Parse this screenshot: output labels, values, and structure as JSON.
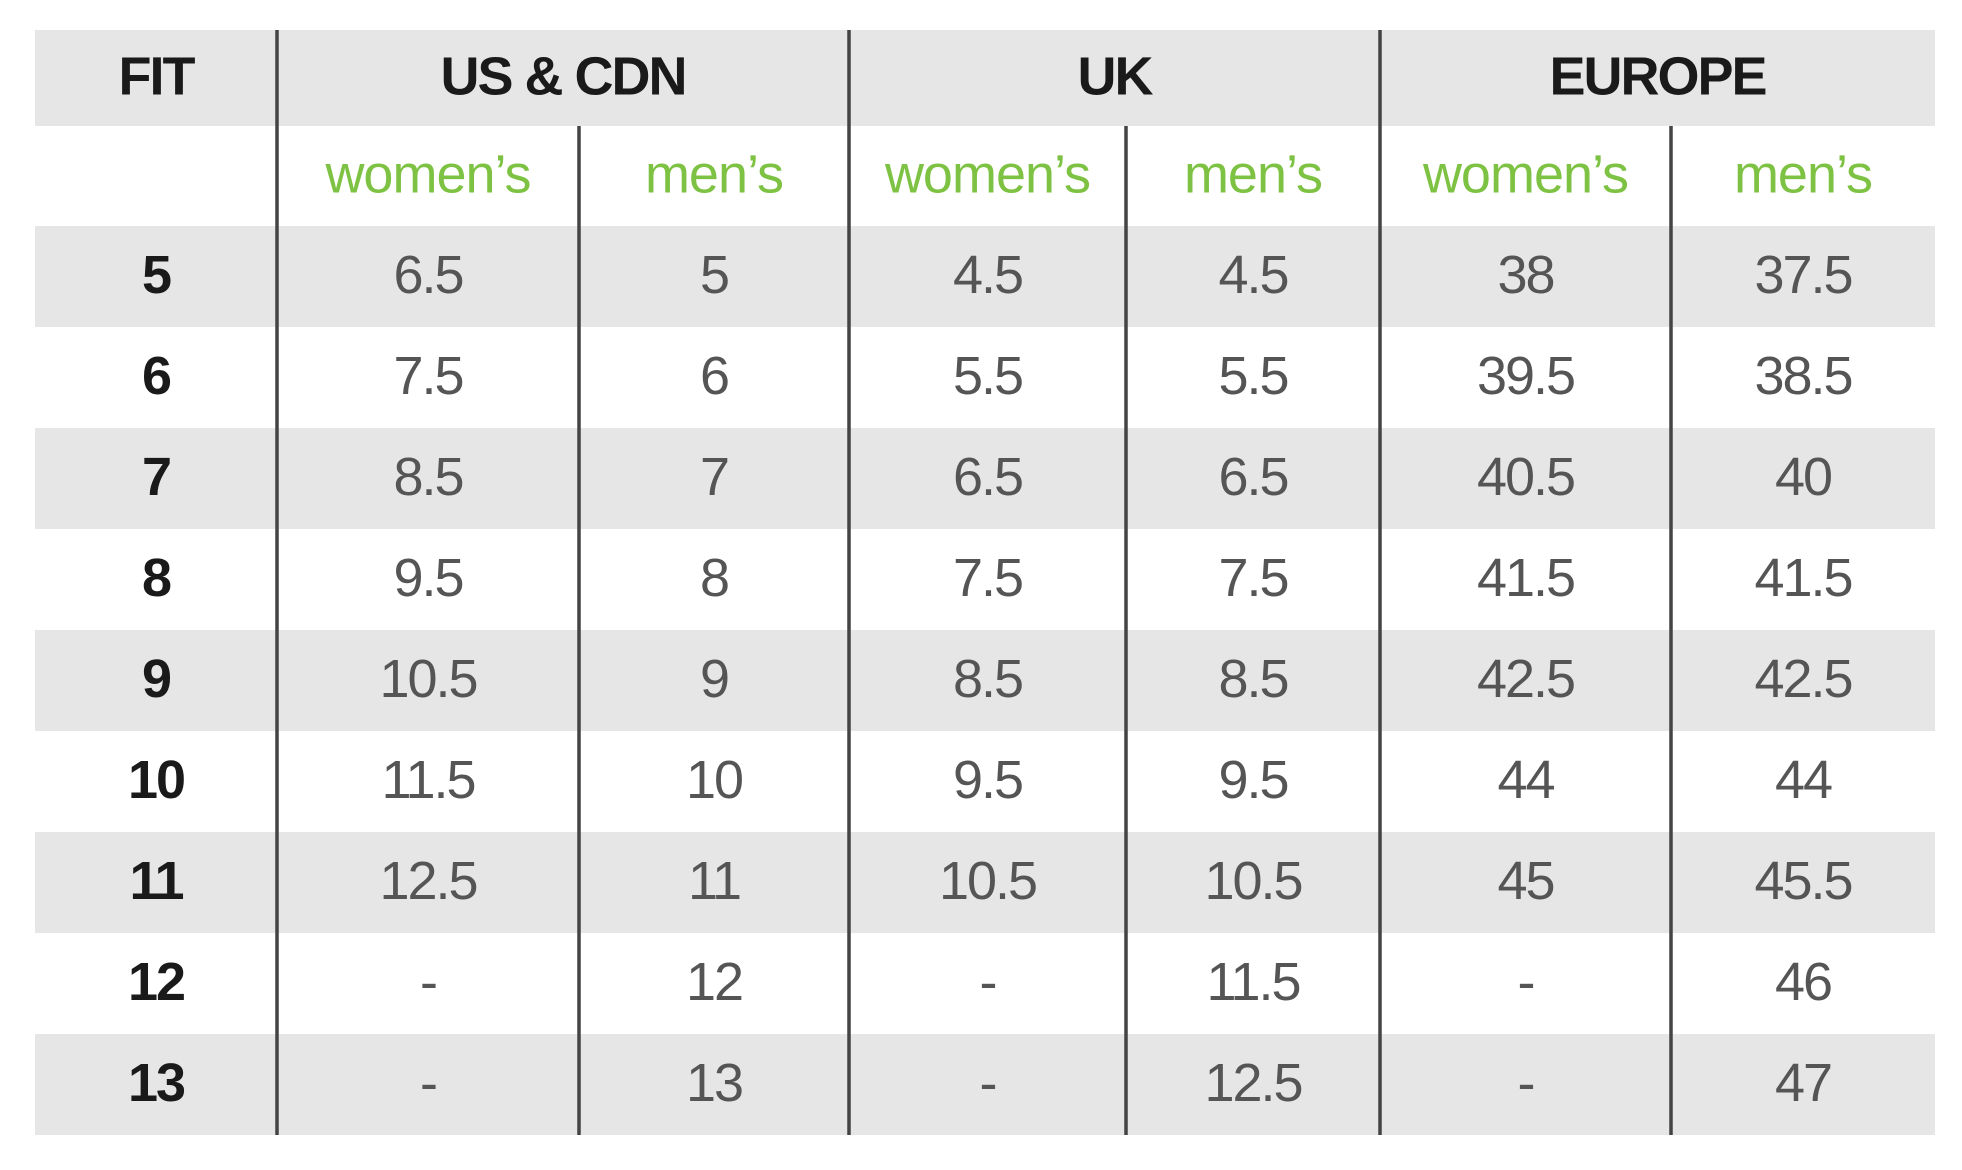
{
  "table": {
    "header": {
      "fit": "FIT",
      "groups": [
        "US & CDN",
        "UK",
        "EUROPE"
      ],
      "subheaders": [
        "women’s",
        "men’s",
        "women’s",
        "men’s",
        "women’s",
        "men’s"
      ]
    },
    "rows": [
      [
        "5",
        "6.5",
        "5",
        "4.5",
        "4.5",
        "38",
        "37.5"
      ],
      [
        "6",
        "7.5",
        "6",
        "5.5",
        "5.5",
        "39.5",
        "38.5"
      ],
      [
        "7",
        "8.5",
        "7",
        "6.5",
        "6.5",
        "40.5",
        "40"
      ],
      [
        "8",
        "9.5",
        "8",
        "7.5",
        "7.5",
        "41.5",
        "41.5"
      ],
      [
        "9",
        "10.5",
        "9",
        "8.5",
        "8.5",
        "42.5",
        "42.5"
      ],
      [
        "10",
        "11.5",
        "10",
        "9.5",
        "9.5",
        "44",
        "44"
      ],
      [
        "11",
        "12.5",
        "11",
        "10.5",
        "10.5",
        "45",
        "45.5"
      ],
      [
        "12",
        "-",
        "12",
        "-",
        "11.5",
        "-",
        "46"
      ],
      [
        "13",
        "-",
        "13",
        "-",
        "12.5",
        "-",
        "47"
      ]
    ]
  }
}
